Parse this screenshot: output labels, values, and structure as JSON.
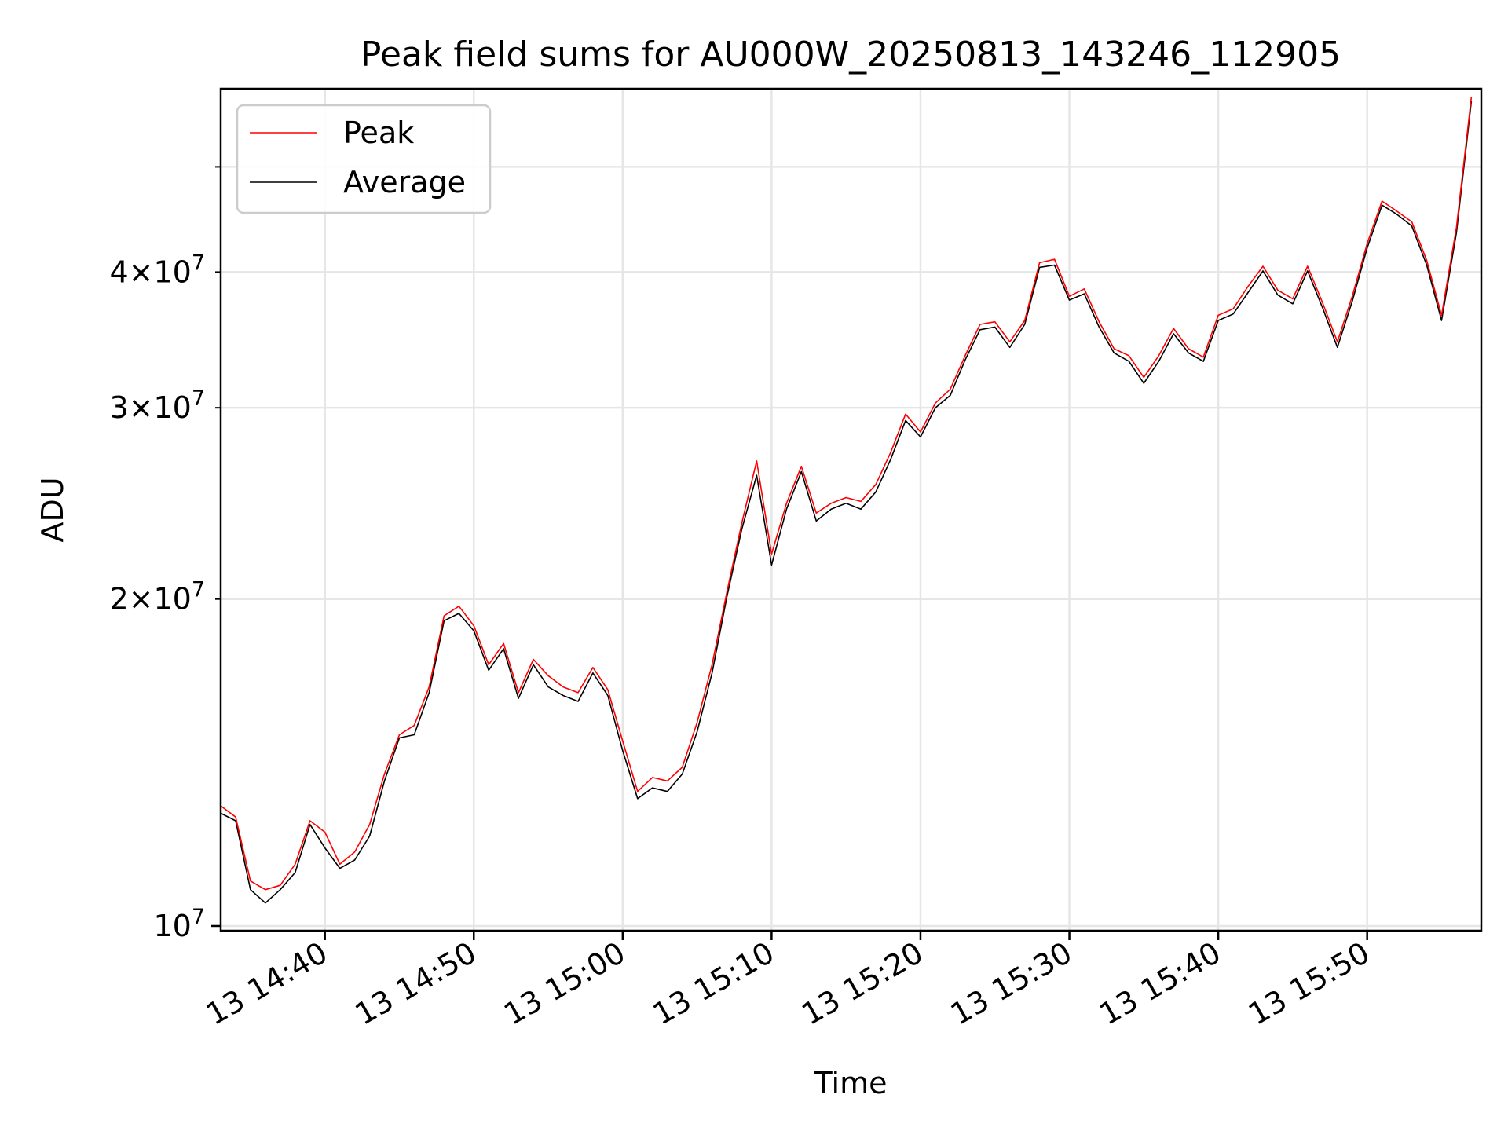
{
  "chart_data": {
    "type": "line",
    "title": "Peak field sums for AU000W_20250813_143246_112905",
    "xlabel": "Time",
    "ylabel": "ADU",
    "yscale": "log",
    "ylim": [
      9900000,
      59000000
    ],
    "xlim": [
      "14:33:00",
      "15:57:40"
    ],
    "grid": true,
    "legend_position": "upper left",
    "x_ticks": [
      {
        "value": "14:40",
        "label": "13 14:40"
      },
      {
        "value": "14:50",
        "label": "13 14:50"
      },
      {
        "value": "15:00",
        "label": "13 15:00"
      },
      {
        "value": "15:10",
        "label": "13 15:10"
      },
      {
        "value": "15:20",
        "label": "13 15:20"
      },
      {
        "value": "15:30",
        "label": "13 15:30"
      },
      {
        "value": "15:40",
        "label": "13 15:40"
      },
      {
        "value": "15:50",
        "label": "13 15:50"
      }
    ],
    "y_major_ticks": [
      {
        "value": 10000000,
        "base": "10",
        "exp": "7"
      }
    ],
    "y_minor_ticks": [
      {
        "value": 20000000,
        "coef": "2",
        "base": "10",
        "exp": "7"
      },
      {
        "value": 30000000,
        "coef": "3",
        "base": "10",
        "exp": "7"
      },
      {
        "value": 40000000,
        "coef": "4",
        "base": "10",
        "exp": "7"
      },
      {
        "value": 50000000
      }
    ],
    "x": [
      "14:33",
      "14:34",
      "14:35",
      "14:36",
      "14:37",
      "14:38",
      "14:39",
      "14:40",
      "14:41",
      "14:42",
      "14:43",
      "14:44",
      "14:45",
      "14:46",
      "14:47",
      "14:48",
      "14:49",
      "14:50",
      "14:51",
      "14:52",
      "14:53",
      "14:54",
      "14:55",
      "14:56",
      "14:57",
      "14:58",
      "14:59",
      "15:00",
      "15:01",
      "15:02",
      "15:03",
      "15:04",
      "15:05",
      "15:06",
      "15:07",
      "15:08",
      "15:09",
      "15:10",
      "15:11",
      "15:12",
      "15:13",
      "15:14",
      "15:15",
      "15:16",
      "15:17",
      "15:18",
      "15:19",
      "15:20",
      "15:21",
      "15:22",
      "15:23",
      "15:24",
      "15:25",
      "15:26",
      "15:27",
      "15:28",
      "15:29",
      "15:30",
      "15:31",
      "15:32",
      "15:33",
      "15:34",
      "15:35",
      "15:36",
      "15:37",
      "15:38",
      "15:39",
      "15:40",
      "15:41",
      "15:42",
      "15:43",
      "15:44",
      "15:45",
      "15:46",
      "15:47",
      "15:48",
      "15:49",
      "15:50",
      "15:51",
      "15:52",
      "15:53",
      "15:54",
      "15:55",
      "15:56",
      "15:57"
    ],
    "series": [
      {
        "name": "Peak",
        "color": "#ff0000",
        "values": [
          12900000,
          12600000,
          11000000,
          10800000,
          10900000,
          11400000,
          12500000,
          12200000,
          11400000,
          11700000,
          12400000,
          13800000,
          15000000,
          15300000,
          16600000,
          19300000,
          19700000,
          18900000,
          17400000,
          18200000,
          16400000,
          17600000,
          17000000,
          16600000,
          16400000,
          17300000,
          16500000,
          14800000,
          13300000,
          13700000,
          13600000,
          14000000,
          15400000,
          17400000,
          20300000,
          23500000,
          26800000,
          22000000,
          24500000,
          26500000,
          24000000,
          24500000,
          24800000,
          24600000,
          25500000,
          27300000,
          29600000,
          28500000,
          30300000,
          31200000,
          33500000,
          35800000,
          36000000,
          34500000,
          36100000,
          40800000,
          41100000,
          38000000,
          38600000,
          36000000,
          34000000,
          33500000,
          32000000,
          33500000,
          35500000,
          34000000,
          33400000,
          36500000,
          37000000,
          38800000,
          40500000,
          38500000,
          37800000,
          40500000,
          37500000,
          34500000,
          38000000,
          42500000,
          46500000,
          45500000,
          44500000,
          41000000,
          36500000,
          44000000,
          58000000
        ]
      },
      {
        "name": "Average",
        "color": "#000000",
        "values": [
          12700000,
          12500000,
          10800000,
          10500000,
          10800000,
          11200000,
          12400000,
          11800000,
          11300000,
          11500000,
          12100000,
          13600000,
          14900000,
          15000000,
          16400000,
          19100000,
          19400000,
          18700000,
          17200000,
          18000000,
          16200000,
          17400000,
          16600000,
          16300000,
          16100000,
          17100000,
          16300000,
          14500000,
          13100000,
          13400000,
          13300000,
          13800000,
          15100000,
          17100000,
          20100000,
          23200000,
          26000000,
          21500000,
          24200000,
          26200000,
          23600000,
          24200000,
          24500000,
          24200000,
          25100000,
          26900000,
          29200000,
          28200000,
          30000000,
          30800000,
          33200000,
          35400000,
          35600000,
          34100000,
          35800000,
          40400000,
          40600000,
          37700000,
          38200000,
          35600000,
          33700000,
          33100000,
          31600000,
          33100000,
          35100000,
          33700000,
          33100000,
          36100000,
          36600000,
          38300000,
          40100000,
          38100000,
          37400000,
          40100000,
          37100000,
          34100000,
          37600000,
          42100000,
          46100000,
          45200000,
          44100000,
          40600000,
          36100000,
          43500000,
          57500000
        ]
      }
    ]
  }
}
